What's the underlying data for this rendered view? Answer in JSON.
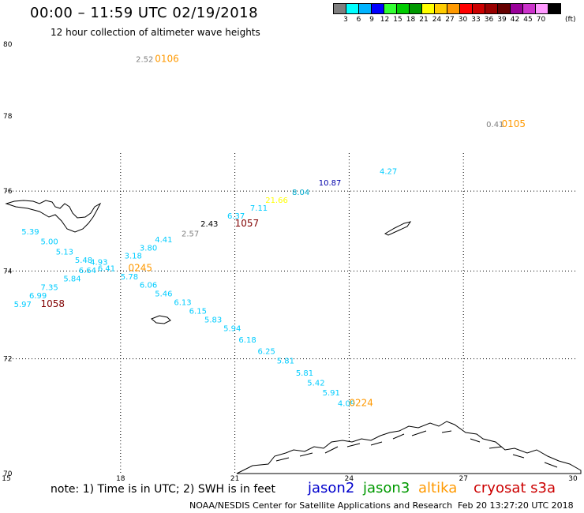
{
  "header": {
    "title": "00:00 – 11:59 UTC 02/19/2018",
    "subtitle": "12 hour collection of altimeter wave heights"
  },
  "colorbar": {
    "colors": [
      "#7f7f7f",
      "#00ffff",
      "#00b3ff",
      "#0000ff",
      "#33ff33",
      "#00cc00",
      "#009900",
      "#ffff00",
      "#ffcc00",
      "#ff9900",
      "#ff0000",
      "#cc0000",
      "#990000",
      "#660000",
      "#990099",
      "#cc33cc",
      "#ff99ff",
      "#000000"
    ],
    "ticks": [
      "3",
      "6",
      "9",
      "12",
      "15",
      "18",
      "21",
      "24",
      "27",
      "30",
      "33",
      "36",
      "39",
      "42",
      "45",
      "70"
    ],
    "unit": "(ft)"
  },
  "map": {
    "lat_labels": [
      "80",
      "78",
      "76",
      "74",
      "72",
      "70"
    ],
    "lon_labels": [
      "15",
      "18",
      "21",
      "24",
      "27",
      "30"
    ],
    "lat_range": [
      70,
      80
    ],
    "lon_range": [
      15,
      30
    ],
    "observations": [
      {
        "text": "2.52",
        "color": "#7f7f7f",
        "lon": 18.4,
        "lat": 79.5
      },
      {
        "text": "0106",
        "color": "#ff9900",
        "lon": 18.9,
        "lat": 79.5
      },
      {
        "text": "0.41",
        "color": "#7f7f7f",
        "lon": 27.6,
        "lat": 77.7
      },
      {
        "text": "0105",
        "color": "#ff9900",
        "lon": 28.0,
        "lat": 77.7
      },
      {
        "text": "4.27",
        "color": "#00ccff",
        "lon": 24.8,
        "lat": 76.45
      },
      {
        "text": "10.87",
        "color": "#0000aa",
        "lon": 23.2,
        "lat": 76.15
      },
      {
        "text": "8.04",
        "color": "#00aacc",
        "lon": 22.5,
        "lat": 75.9
      },
      {
        "text": "21.66",
        "color": "#ffff00",
        "lon": 21.8,
        "lat": 75.7
      },
      {
        "text": "7.11",
        "color": "#00ccff",
        "lon": 21.4,
        "lat": 75.5
      },
      {
        "text": "6.37",
        "color": "#00ccff",
        "lon": 20.8,
        "lat": 75.3
      },
      {
        "text": "1057",
        "color": "#800000",
        "lon": 21.0,
        "lat": 75.1
      },
      {
        "text": "2.43",
        "color": "#000000",
        "lon": 20.1,
        "lat": 75.1
      },
      {
        "text": "2.57",
        "color": "#7f7f7f",
        "lon": 19.6,
        "lat": 74.85
      },
      {
        "text": "4.41",
        "color": "#00ccff",
        "lon": 18.9,
        "lat": 74.7
      },
      {
        "text": "3.80",
        "color": "#00ccff",
        "lon": 18.5,
        "lat": 74.5
      },
      {
        "text": "3.18",
        "color": "#00ccff",
        "lon": 18.1,
        "lat": 74.3
      },
      {
        "text": "4.93",
        "color": "#00ccff",
        "lon": 17.2,
        "lat": 74.15
      },
      {
        "text": "5.39",
        "color": "#00ccff",
        "lon": 15.4,
        "lat": 74.9
      },
      {
        "text": "5.00",
        "color": "#00ccff",
        "lon": 15.9,
        "lat": 74.65
      },
      {
        "text": "5.13",
        "color": "#00ccff",
        "lon": 16.3,
        "lat": 74.4
      },
      {
        "text": "5.48",
        "color": "#00ccff",
        "lon": 16.8,
        "lat": 74.2
      },
      {
        "text": "6.64",
        "color": "#00ccff",
        "lon": 16.9,
        "lat": 73.95
      },
      {
        "text": "6.41",
        "color": "#00ccff",
        "lon": 17.4,
        "lat": 74.0
      },
      {
        "text": "5.84",
        "color": "#00ccff",
        "lon": 16.5,
        "lat": 73.75
      },
      {
        "text": "0245",
        "color": "#ff9900",
        "lon": 18.2,
        "lat": 74.0
      },
      {
        "text": "7.35",
        "color": "#00ccff",
        "lon": 15.9,
        "lat": 73.55
      },
      {
        "text": "6.99",
        "color": "#00ccff",
        "lon": 15.6,
        "lat": 73.35
      },
      {
        "text": "5.97",
        "color": "#00ccff",
        "lon": 15.2,
        "lat": 73.15
      },
      {
        "text": "1058",
        "color": "#800000",
        "lon": 15.9,
        "lat": 73.15
      },
      {
        "text": "5.78",
        "color": "#00ccff",
        "lon": 18.0,
        "lat": 73.8
      },
      {
        "text": "6.06",
        "color": "#00ccff",
        "lon": 18.5,
        "lat": 73.6
      },
      {
        "text": "5.46",
        "color": "#00ccff",
        "lon": 18.9,
        "lat": 73.4
      },
      {
        "text": "6.13",
        "color": "#00ccff",
        "lon": 19.4,
        "lat": 73.2
      },
      {
        "text": "6.15",
        "color": "#00ccff",
        "lon": 19.8,
        "lat": 73.0
      },
      {
        "text": "5.83",
        "color": "#00ccff",
        "lon": 20.2,
        "lat": 72.8
      },
      {
        "text": "5.94",
        "color": "#00ccff",
        "lon": 20.7,
        "lat": 72.6
      },
      {
        "text": "6.18",
        "color": "#00ccff",
        "lon": 21.1,
        "lat": 72.35
      },
      {
        "text": "6.25",
        "color": "#00ccff",
        "lon": 21.6,
        "lat": 72.1
      },
      {
        "text": "5.81",
        "color": "#00ccff",
        "lon": 22.1,
        "lat": 71.9
      },
      {
        "text": "5.81",
        "color": "#00ccff",
        "lon": 22.6,
        "lat": 71.65
      },
      {
        "text": "5.42",
        "color": "#00ccff",
        "lon": 22.9,
        "lat": 71.45
      },
      {
        "text": "5.91",
        "color": "#00ccff",
        "lon": 23.3,
        "lat": 71.25
      },
      {
        "text": "4.09",
        "color": "#00ccff",
        "lon": 23.7,
        "lat": 71.05
      },
      {
        "text": "0224",
        "color": "#ff9900",
        "lon": 24.0,
        "lat": 71.05
      }
    ]
  },
  "footer": {
    "note": "note:  1) Time is in UTC;  2) SWH is in feet",
    "satellites": [
      {
        "name": "jason2",
        "color": "#0000cc"
      },
      {
        "name": "jason3",
        "color": "#009900"
      },
      {
        "name": "altika",
        "color": "#ff9900"
      },
      {
        "name": "cryosat s3a",
        "color": "#cc0000"
      }
    ],
    "credit": "NOAA/NESDIS Center for Satellite Applications and Research",
    "timestamp": "Feb 20 13:27:20 UTC 2018"
  }
}
